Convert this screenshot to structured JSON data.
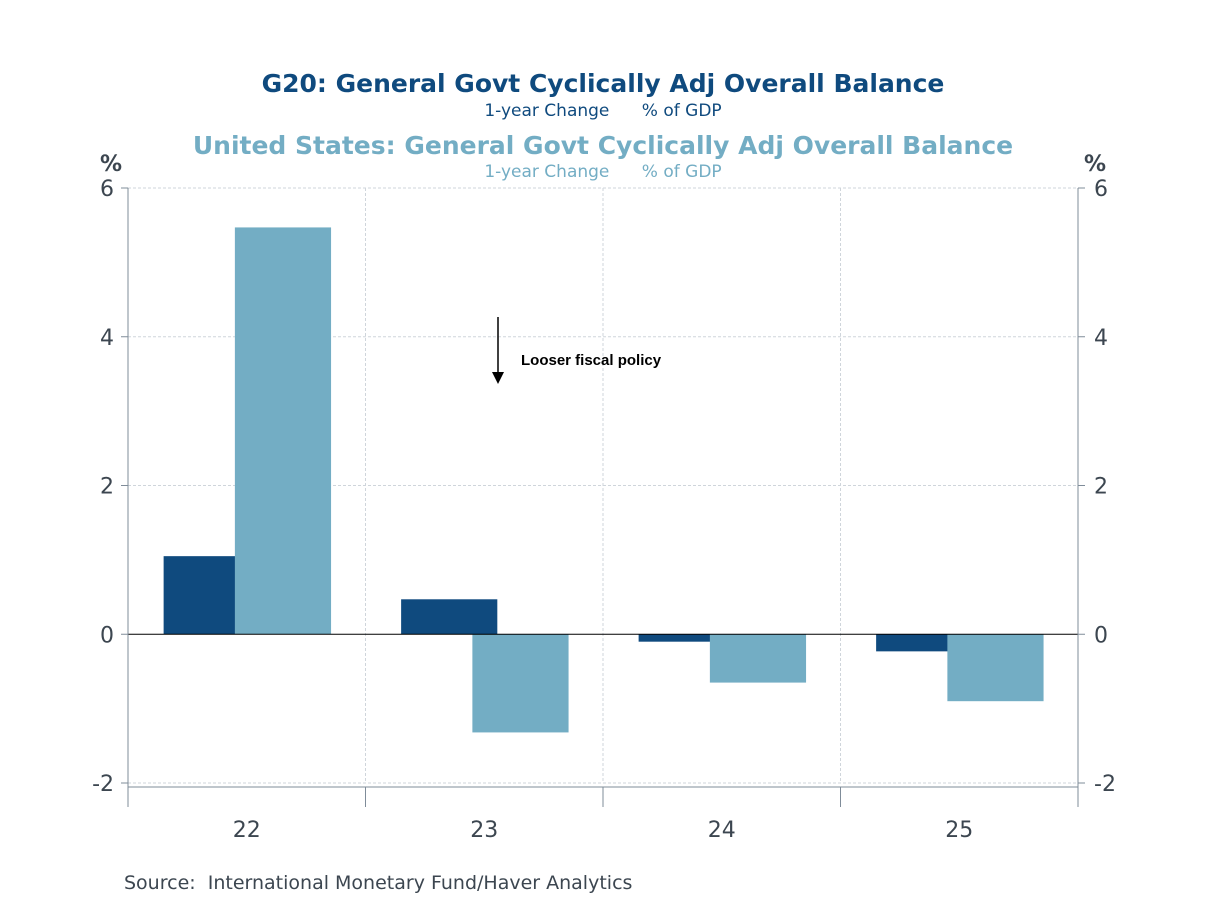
{
  "chart_data": {
    "type": "bar",
    "title": "G20: General Govt Cyclically Adj Overall Balance",
    "subtitle": "1-year Change      % of GDP",
    "title2": "United States: General Govt Cyclically Adj Overall Balance",
    "subtitle2": "1-year Change      % of GDP",
    "categories": [
      "22",
      "23",
      "24",
      "25"
    ],
    "series": [
      {
        "name": "G20: General Govt Cyclically Adj Overall Balance",
        "color": "#0f4a7e",
        "values": [
          1.05,
          0.47,
          -0.1,
          -0.23
        ]
      },
      {
        "name": "United States: General Govt Cyclically Adj Overall Balance",
        "color": "#73adc4",
        "values": [
          5.47,
          -1.32,
          -0.65,
          -0.9
        ]
      }
    ],
    "ylim": [
      -2,
      6
    ],
    "yticks": [
      "6",
      "4",
      "2",
      "0",
      "-2"
    ],
    "ylabel_left": "%",
    "ylabel_right": "%",
    "grid": true,
    "annotation": "Looser fiscal policy",
    "source": "Source:  International Monetary Fund/Haver Analytics"
  }
}
